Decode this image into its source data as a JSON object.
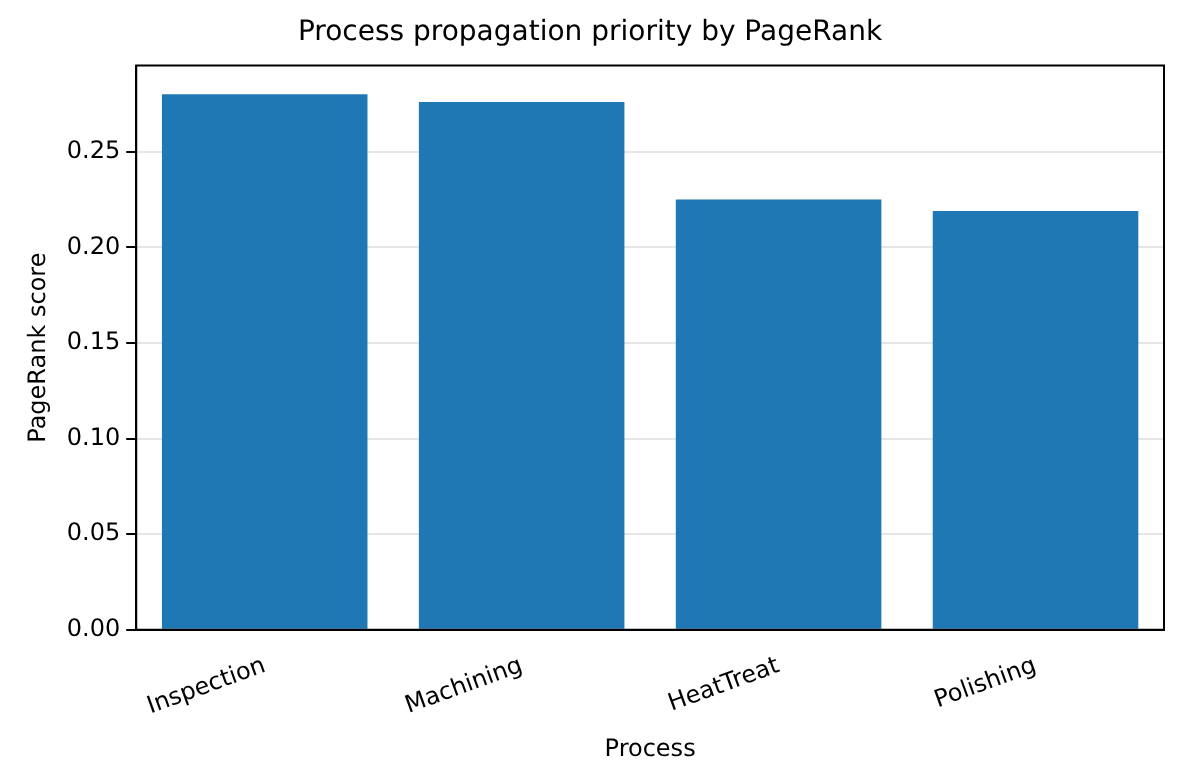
{
  "chart_data": {
    "type": "bar",
    "title": "Process propagation priority by PageRank",
    "xlabel": "Process",
    "ylabel": "PageRank score",
    "categories": [
      "Inspection",
      "Machining",
      "HeatTreat",
      "Polishing"
    ],
    "values": [
      0.28,
      0.276,
      0.225,
      0.219
    ],
    "color": "#1f77b4",
    "ylim": [
      0,
      0.295
    ],
    "yticks": [
      {
        "value": 0,
        "label": "0.00"
      },
      {
        "value": 0.05,
        "label": "0.05"
      },
      {
        "value": 0.1,
        "label": "0.10"
      },
      {
        "value": 0.15,
        "label": "0.15"
      },
      {
        "value": 0.2,
        "label": "0.20"
      },
      {
        "value": 0.25,
        "label": "0.25"
      }
    ],
    "grid": "y",
    "legend": false
  }
}
